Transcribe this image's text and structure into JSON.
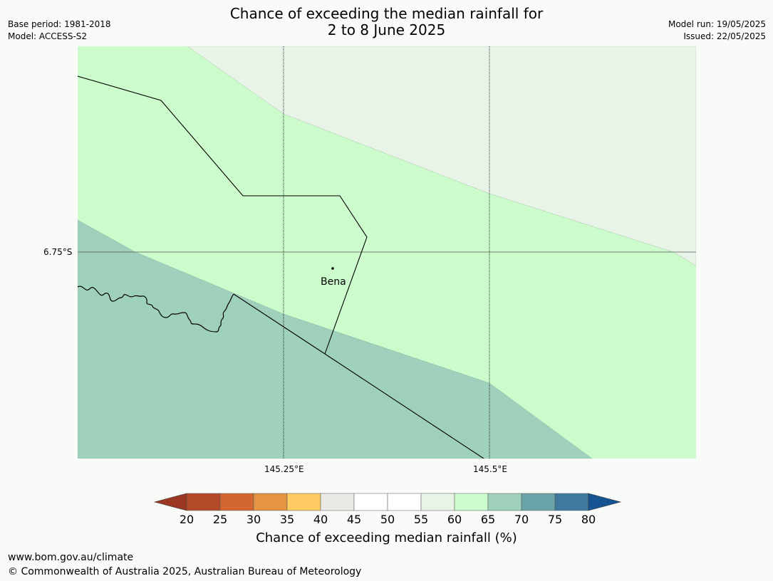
{
  "title": {
    "line1": "Chance of exceeding the median rainfall for",
    "line2": "2 to 8 June 2025"
  },
  "meta_left": {
    "base_period": "Base period: 1981-2018",
    "model": "Model: ACCESS-S2"
  },
  "meta_right": {
    "model_run": "Model run: 19/05/2025",
    "issued": "Issued: 22/05/2025"
  },
  "map": {
    "lat_label": "6.75°S",
    "lon_labels": [
      "145.25°E",
      "145.5°E"
    ],
    "place": "Bena",
    "zones": [
      {
        "range": "55-60",
        "color": "#e8f4e8"
      },
      {
        "range": "60-65",
        "color": "#ccfccc"
      },
      {
        "range": "65-70",
        "color": "#9fd0bb"
      }
    ]
  },
  "colorbar": {
    "label": "Chance of exceeding median rainfall (%)",
    "ticks": [
      "20",
      "25",
      "30",
      "35",
      "40",
      "45",
      "50",
      "55",
      "60",
      "65",
      "70",
      "75",
      "80"
    ],
    "colors": [
      "#9c3822",
      "#b44a27",
      "#d2672f",
      "#e59444",
      "#fecc62",
      "#ebe9e6",
      "#ffffff",
      "#ffffff",
      "#e8f4e8",
      "#ccfccc",
      "#9fd0bb",
      "#6aa4a9",
      "#3f7a9e",
      "#175494"
    ]
  },
  "footer": {
    "url": "www.bom.gov.au/climate",
    "copyright": "© Commonwealth of Australia 2025, Australian Bureau of Meteorology"
  }
}
